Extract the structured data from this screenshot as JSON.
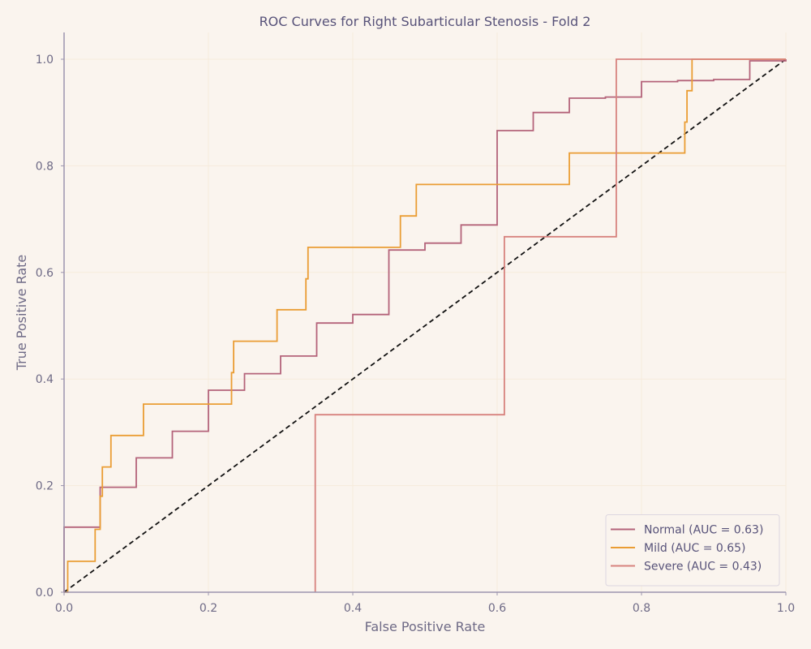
{
  "chart_data": {
    "type": "line",
    "title": "ROC Curves for Right Subarticular Stenosis - Fold 2",
    "xlabel": "False Positive Rate",
    "ylabel": "True Positive Rate",
    "xlim": [
      0.0,
      1.0
    ],
    "ylim": [
      0.0,
      1.0
    ],
    "xticks": [
      "0.0",
      "0.2",
      "0.4",
      "0.6",
      "0.8",
      "1.0"
    ],
    "yticks": [
      "0.0",
      "0.2",
      "0.4",
      "0.6",
      "0.8",
      "1.0"
    ],
    "grid": true,
    "legend_position": "bottom-right",
    "background_color": "#faf4ee",
    "grid_color": "#f6ebdc",
    "axis_color": "#9b93ad",
    "series": [
      {
        "name": "Normal (AUC = 0.63)",
        "color": "#b4637a",
        "points": [
          [
            0.0,
            0.0
          ],
          [
            0.0,
            0.122
          ],
          [
            0.05,
            0.122
          ],
          [
            0.05,
            0.197
          ],
          [
            0.1,
            0.197
          ],
          [
            0.1,
            0.252
          ],
          [
            0.15,
            0.252
          ],
          [
            0.15,
            0.302
          ],
          [
            0.2,
            0.302
          ],
          [
            0.2,
            0.379
          ],
          [
            0.25,
            0.379
          ],
          [
            0.25,
            0.41
          ],
          [
            0.3,
            0.41
          ],
          [
            0.3,
            0.443
          ],
          [
            0.35,
            0.443
          ],
          [
            0.35,
            0.505
          ],
          [
            0.4,
            0.505
          ],
          [
            0.4,
            0.521
          ],
          [
            0.45,
            0.521
          ],
          [
            0.45,
            0.642
          ],
          [
            0.5,
            0.642
          ],
          [
            0.5,
            0.655
          ],
          [
            0.55,
            0.655
          ],
          [
            0.55,
            0.689
          ],
          [
            0.6,
            0.689
          ],
          [
            0.6,
            0.866
          ],
          [
            0.65,
            0.866
          ],
          [
            0.65,
            0.9
          ],
          [
            0.7,
            0.9
          ],
          [
            0.7,
            0.927
          ],
          [
            0.75,
            0.927
          ],
          [
            0.75,
            0.929
          ],
          [
            0.8,
            0.929
          ],
          [
            0.8,
            0.958
          ],
          [
            0.85,
            0.958
          ],
          [
            0.85,
            0.96
          ],
          [
            0.9,
            0.96
          ],
          [
            0.9,
            0.962
          ],
          [
            0.95,
            0.962
          ],
          [
            0.95,
            0.997
          ],
          [
            1.0,
            0.997
          ],
          [
            1.0,
            1.0
          ]
        ]
      },
      {
        "name": "Mild (AUC = 0.65)",
        "color": "#ea9d34",
        "points": [
          [
            0.0,
            0.0
          ],
          [
            0.005,
            0.0
          ],
          [
            0.005,
            0.058
          ],
          [
            0.043,
            0.058
          ],
          [
            0.043,
            0.118
          ],
          [
            0.05,
            0.118
          ],
          [
            0.05,
            0.18
          ],
          [
            0.053,
            0.18
          ],
          [
            0.053,
            0.235
          ],
          [
            0.065,
            0.235
          ],
          [
            0.065,
            0.294
          ],
          [
            0.11,
            0.294
          ],
          [
            0.11,
            0.353
          ],
          [
            0.232,
            0.353
          ],
          [
            0.232,
            0.412
          ],
          [
            0.235,
            0.412
          ],
          [
            0.235,
            0.471
          ],
          [
            0.295,
            0.471
          ],
          [
            0.295,
            0.53
          ],
          [
            0.335,
            0.53
          ],
          [
            0.335,
            0.588
          ],
          [
            0.338,
            0.588
          ],
          [
            0.338,
            0.647
          ],
          [
            0.466,
            0.647
          ],
          [
            0.466,
            0.706
          ],
          [
            0.488,
            0.706
          ],
          [
            0.488,
            0.765
          ],
          [
            0.7,
            0.765
          ],
          [
            0.7,
            0.824
          ],
          [
            0.86,
            0.824
          ],
          [
            0.86,
            0.882
          ],
          [
            0.863,
            0.882
          ],
          [
            0.863,
            0.941
          ],
          [
            0.87,
            0.941
          ],
          [
            0.87,
            1.0
          ],
          [
            1.0,
            1.0
          ]
        ]
      },
      {
        "name": "Severe (AUC = 0.43)",
        "color": "#d7827e",
        "points": [
          [
            0.348,
            0.0
          ],
          [
            0.348,
            0.333
          ],
          [
            0.61,
            0.333
          ],
          [
            0.61,
            0.667
          ],
          [
            0.765,
            0.667
          ],
          [
            0.765,
            1.0
          ],
          [
            1.0,
            1.0
          ]
        ]
      }
    ],
    "reference_line": {
      "points": [
        [
          0.0,
          0.0
        ],
        [
          1.0,
          1.0
        ]
      ],
      "color": "#111111",
      "style": "dashed"
    }
  }
}
